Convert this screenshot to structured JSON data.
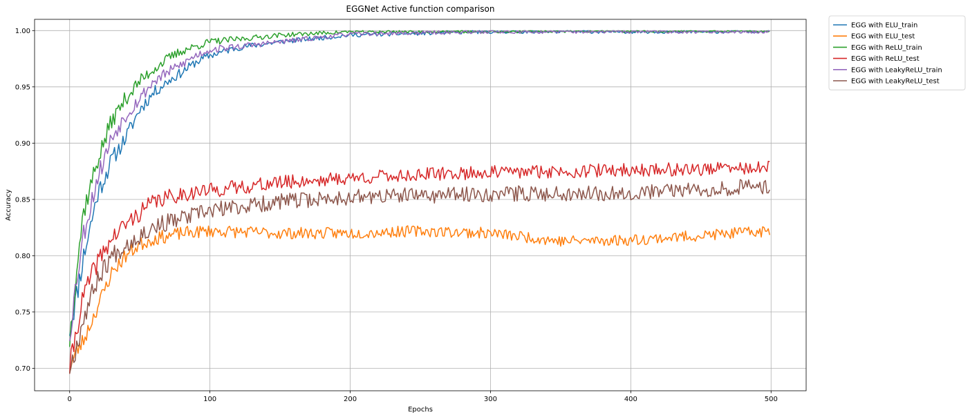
{
  "chart_data": {
    "type": "line",
    "title": "EGGNet Active function comparison",
    "xlabel": "Epochs",
    "ylabel": "Accuracy",
    "xlim": [
      -25,
      525
    ],
    "ylim": [
      0.68,
      1.01
    ],
    "xticks": [
      0,
      100,
      200,
      300,
      400,
      500
    ],
    "yticks": [
      0.7,
      0.75,
      0.8,
      0.85,
      0.9,
      0.95,
      1.0
    ],
    "grid": true,
    "legend_position": "outside-top-right",
    "epochs": 500,
    "series": [
      {
        "name": "EGG with ELU_train",
        "color": "#1f77b4",
        "anchors": [
          [
            0,
            0.735
          ],
          [
            5,
            0.765
          ],
          [
            10,
            0.8
          ],
          [
            20,
            0.855
          ],
          [
            30,
            0.885
          ],
          [
            40,
            0.905
          ],
          [
            50,
            0.93
          ],
          [
            60,
            0.945
          ],
          [
            70,
            0.955
          ],
          [
            80,
            0.963
          ],
          [
            90,
            0.972
          ],
          [
            100,
            0.978
          ],
          [
            120,
            0.985
          ],
          [
            150,
            0.99
          ],
          [
            200,
            0.996
          ],
          [
            300,
            0.999
          ],
          [
            500,
            0.999
          ]
        ],
        "noise": [
          0.012,
          0.0015
        ],
        "seed": 11
      },
      {
        "name": "EGG with ELU_test",
        "color": "#ff7f0e",
        "anchors": [
          [
            0,
            0.7
          ],
          [
            5,
            0.715
          ],
          [
            10,
            0.725
          ],
          [
            20,
            0.755
          ],
          [
            30,
            0.785
          ],
          [
            40,
            0.8
          ],
          [
            50,
            0.81
          ],
          [
            60,
            0.815
          ],
          [
            80,
            0.82
          ],
          [
            100,
            0.822
          ],
          [
            150,
            0.82
          ],
          [
            200,
            0.82
          ],
          [
            250,
            0.822
          ],
          [
            300,
            0.82
          ],
          [
            330,
            0.816
          ],
          [
            350,
            0.813
          ],
          [
            400,
            0.814
          ],
          [
            450,
            0.818
          ],
          [
            500,
            0.822
          ]
        ],
        "noise": [
          0.008,
          0.005
        ],
        "seed": 23
      },
      {
        "name": "EGG with ReLU_train",
        "color": "#2ca02c",
        "anchors": [
          [
            0,
            0.725
          ],
          [
            5,
            0.79
          ],
          [
            10,
            0.84
          ],
          [
            20,
            0.885
          ],
          [
            30,
            0.92
          ],
          [
            40,
            0.94
          ],
          [
            50,
            0.955
          ],
          [
            60,
            0.966
          ],
          [
            70,
            0.975
          ],
          [
            80,
            0.982
          ],
          [
            90,
            0.986
          ],
          [
            100,
            0.99
          ],
          [
            150,
            0.996
          ],
          [
            200,
            0.999
          ],
          [
            300,
            0.999
          ],
          [
            500,
            1.0
          ]
        ],
        "noise": [
          0.012,
          0.0012
        ],
        "seed": 37
      },
      {
        "name": "EGG with ReLU_test",
        "color": "#d62728",
        "anchors": [
          [
            0,
            0.7
          ],
          [
            5,
            0.735
          ],
          [
            10,
            0.765
          ],
          [
            20,
            0.795
          ],
          [
            30,
            0.815
          ],
          [
            40,
            0.828
          ],
          [
            50,
            0.838
          ],
          [
            60,
            0.848
          ],
          [
            80,
            0.855
          ],
          [
            100,
            0.858
          ],
          [
            150,
            0.865
          ],
          [
            200,
            0.869
          ],
          [
            250,
            0.872
          ],
          [
            300,
            0.874
          ],
          [
            400,
            0.876
          ],
          [
            500,
            0.878
          ]
        ],
        "noise": [
          0.01,
          0.006
        ],
        "seed": 41
      },
      {
        "name": "EGG with LeakyReLU_train",
        "color": "#9467bd",
        "anchors": [
          [
            0,
            0.73
          ],
          [
            5,
            0.78
          ],
          [
            10,
            0.82
          ],
          [
            20,
            0.87
          ],
          [
            30,
            0.905
          ],
          [
            40,
            0.925
          ],
          [
            50,
            0.94
          ],
          [
            60,
            0.955
          ],
          [
            70,
            0.963
          ],
          [
            80,
            0.97
          ],
          [
            90,
            0.978
          ],
          [
            100,
            0.983
          ],
          [
            150,
            0.99
          ],
          [
            200,
            0.997
          ],
          [
            300,
            0.999
          ],
          [
            500,
            0.999
          ]
        ],
        "noise": [
          0.012,
          0.0015
        ],
        "seed": 53
      },
      {
        "name": "EGG with LeakyReLU_test",
        "color": "#8c564b",
        "anchors": [
          [
            0,
            0.7
          ],
          [
            5,
            0.72
          ],
          [
            10,
            0.745
          ],
          [
            20,
            0.78
          ],
          [
            30,
            0.8
          ],
          [
            40,
            0.81
          ],
          [
            50,
            0.818
          ],
          [
            60,
            0.826
          ],
          [
            80,
            0.833
          ],
          [
            100,
            0.84
          ],
          [
            150,
            0.848
          ],
          [
            200,
            0.852
          ],
          [
            300,
            0.855
          ],
          [
            400,
            0.856
          ],
          [
            500,
            0.862
          ]
        ],
        "noise": [
          0.01,
          0.007
        ],
        "seed": 67
      }
    ]
  }
}
